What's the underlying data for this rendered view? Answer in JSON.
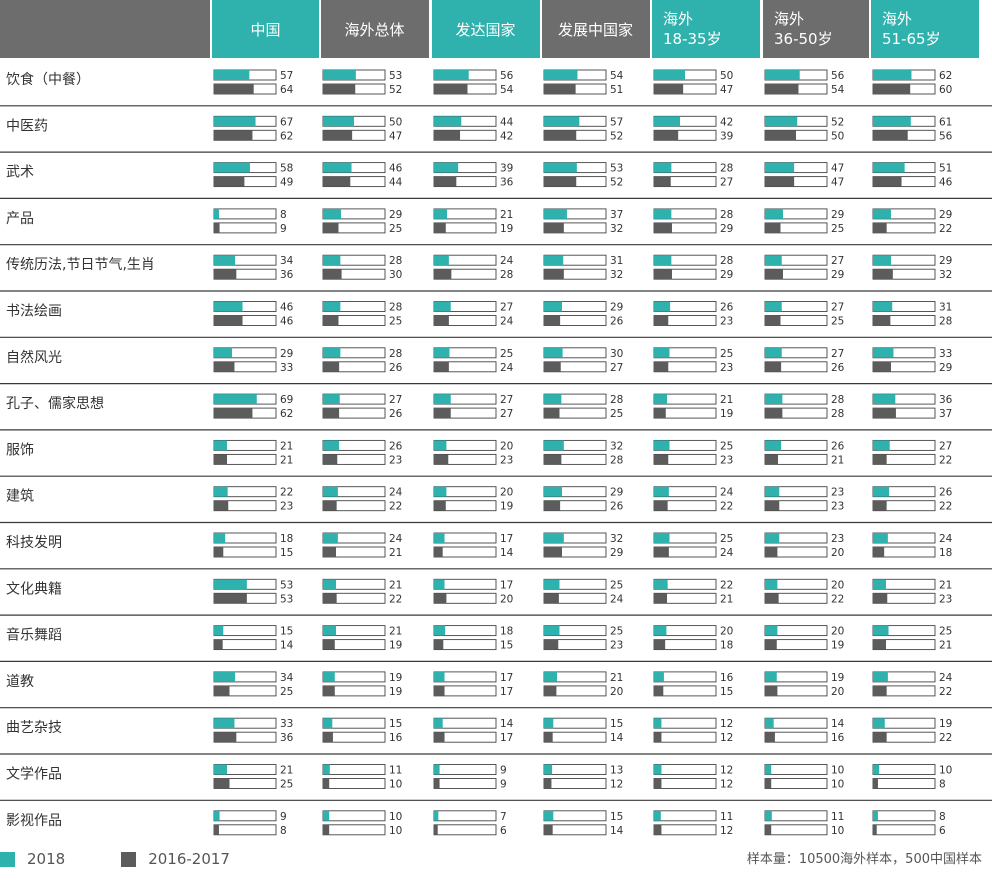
{
  "colors": {
    "teal": "#2fb2ad",
    "gray": "#5c5c5c",
    "header_gray": "#6d6d6d",
    "header_teal": "#2fb2ad"
  },
  "legend": {
    "series_2018": "2018",
    "series_prev": "2016-2017"
  },
  "note": "样本量：10500海外样本，500中国样本",
  "chart_data": {
    "type": "bar",
    "columns": [
      {
        "label_lines": [
          "中国"
        ],
        "theme": "teal"
      },
      {
        "label_lines": [
          "海外总体"
        ],
        "theme": "gray"
      },
      {
        "label_lines": [
          "发达国家"
        ],
        "theme": "teal"
      },
      {
        "label_lines": [
          "发展中国家"
        ],
        "theme": "gray"
      },
      {
        "label_lines": [
          "海外",
          "18-35岁"
        ],
        "theme": "teal"
      },
      {
        "label_lines": [
          "海外",
          "36-50岁"
        ],
        "theme": "gray"
      },
      {
        "label_lines": [
          "海外",
          "51-65岁"
        ],
        "theme": "teal"
      }
    ],
    "categories": [
      "饮食（中餐）",
      "中医药",
      "武术",
      "产品",
      "传统历法,节日节气,生肖",
      "书法绘画",
      "自然风光",
      "孔子、儒家思想",
      "服饰",
      "建筑",
      "科技发明",
      "文化典籍",
      "音乐舞蹈",
      "道教",
      "曲艺杂技",
      "文学作品",
      "影视作品"
    ],
    "series": [
      {
        "name": "2018",
        "values": [
          [
            57,
            53,
            56,
            54,
            50,
            56,
            62
          ],
          [
            67,
            50,
            44,
            57,
            42,
            52,
            61
          ],
          [
            58,
            46,
            39,
            53,
            28,
            47,
            51
          ],
          [
            8,
            29,
            21,
            37,
            28,
            29,
            29
          ],
          [
            34,
            28,
            24,
            31,
            28,
            27,
            29
          ],
          [
            46,
            28,
            27,
            29,
            26,
            27,
            31
          ],
          [
            29,
            28,
            25,
            30,
            25,
            27,
            33
          ],
          [
            69,
            27,
            27,
            28,
            21,
            28,
            36
          ],
          [
            21,
            26,
            20,
            32,
            25,
            26,
            27
          ],
          [
            22,
            24,
            20,
            29,
            24,
            23,
            26
          ],
          [
            18,
            24,
            17,
            32,
            25,
            23,
            24
          ],
          [
            53,
            21,
            17,
            25,
            22,
            20,
            21
          ],
          [
            15,
            21,
            18,
            25,
            20,
            20,
            25
          ],
          [
            34,
            19,
            17,
            21,
            16,
            19,
            24
          ],
          [
            33,
            15,
            14,
            15,
            12,
            14,
            19
          ],
          [
            21,
            11,
            9,
            13,
            12,
            10,
            10
          ],
          [
            9,
            10,
            7,
            15,
            11,
            11,
            8
          ]
        ]
      },
      {
        "name": "2016-2017",
        "values": [
          [
            64,
            52,
            54,
            51,
            47,
            54,
            60
          ],
          [
            62,
            47,
            42,
            52,
            39,
            50,
            56
          ],
          [
            49,
            44,
            36,
            52,
            27,
            47,
            46
          ],
          [
            9,
            25,
            19,
            32,
            29,
            25,
            22
          ],
          [
            36,
            30,
            28,
            32,
            29,
            29,
            32
          ],
          [
            46,
            25,
            24,
            26,
            23,
            25,
            28
          ],
          [
            33,
            26,
            24,
            27,
            23,
            26,
            29
          ],
          [
            62,
            26,
            27,
            25,
            19,
            28,
            37
          ],
          [
            21,
            23,
            23,
            28,
            23,
            21,
            22
          ],
          [
            23,
            22,
            19,
            26,
            22,
            23,
            22
          ],
          [
            15,
            21,
            14,
            29,
            24,
            20,
            18
          ],
          [
            53,
            22,
            20,
            24,
            21,
            22,
            23
          ],
          [
            14,
            19,
            15,
            23,
            18,
            19,
            21
          ],
          [
            25,
            19,
            17,
            20,
            15,
            20,
            22
          ],
          [
            36,
            16,
            17,
            14,
            12,
            16,
            22
          ],
          [
            25,
            10,
            9,
            12,
            12,
            10,
            8
          ],
          [
            8,
            10,
            6,
            14,
            12,
            10,
            6
          ]
        ]
      }
    ],
    "scale_max": 100
  }
}
